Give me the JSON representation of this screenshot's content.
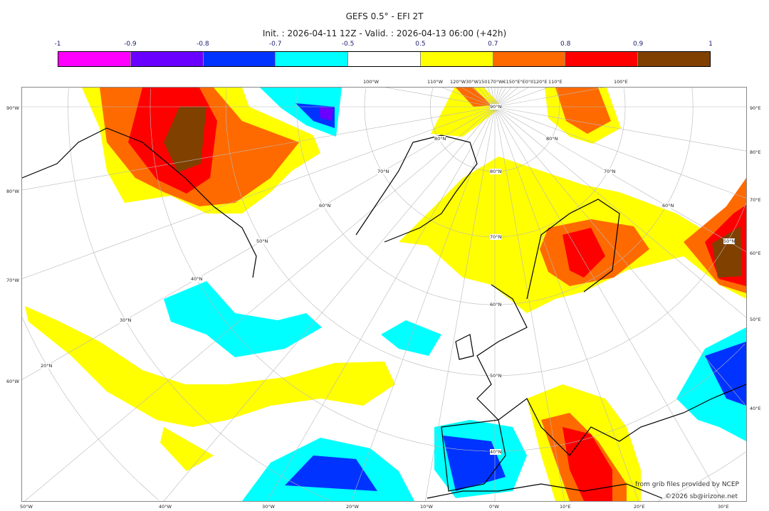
{
  "header": {
    "title": "GEFS 0.5° - EFI 2T",
    "subtitle": "Init. : 2026-04-11 12Z - Valid. : 2026-04-13 06:00 (+42h)"
  },
  "colorbar": {
    "labels": [
      "-1",
      "-0.9",
      "-0.8",
      "-0.7",
      "-0.5",
      "0.5",
      "0.7",
      "0.8",
      "0.9",
      "1"
    ],
    "colors": [
      "#ff00ff",
      "#6a00ff",
      "#0033ff",
      "#00ffff",
      "#ffffff",
      "#ffff00",
      "#ff6a00",
      "#ff0000",
      "#804000"
    ]
  },
  "axes": {
    "left": [
      "90°W",
      "80°W",
      "70°W",
      "60°W"
    ],
    "right": [
      "90°E",
      "80°E",
      "70°E",
      "60°E",
      "50°E",
      "40°E"
    ],
    "bottom": [
      "50°W",
      "40°W",
      "30°W",
      "20°W",
      "10°W",
      "0°W",
      "10°E",
      "20°E",
      "30°E"
    ],
    "top": [
      "100°W",
      "110°W",
      "120°W30°W150170°W€150°E°E0°Il120°E",
      "110°E",
      "100°E"
    ]
  },
  "graticule_labels": [
    "90°N",
    "80°N",
    "80°N",
    "80°N",
    "70°N",
    "70°N",
    "70°N",
    "60°N",
    "60°N",
    "60°N",
    "50°N",
    "50°N",
    "50°N",
    "40°N",
    "40°N",
    "30°N",
    "20°N"
  ],
  "credits": {
    "source": "from grib files provided by NCEP",
    "copyright": "©2026 sb@irizone.net"
  }
}
